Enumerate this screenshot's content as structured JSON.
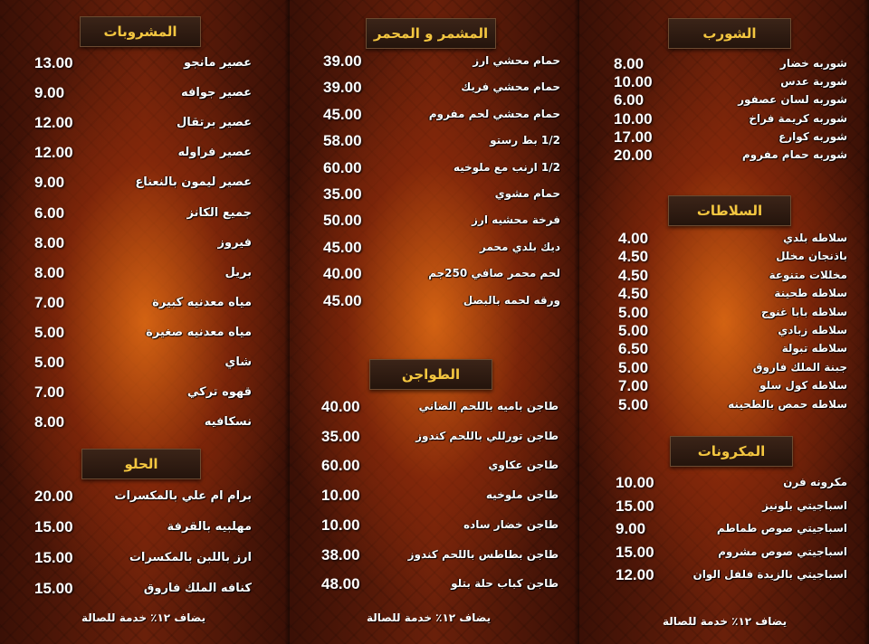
{
  "colors": {
    "header_text": "#f4c640",
    "header_bg": "#2e1a10",
    "item_text": "#ffffff",
    "background": "#8a2a0c"
  },
  "service_note": "يضاف ١٢٪ خدمة للصالة",
  "sections": [
    {
      "id": "drinks",
      "title": "المشروبات",
      "items": [
        {
          "name": "عصير مانجو",
          "price": "13.00"
        },
        {
          "name": "عصير جوافه",
          "price": "9.00"
        },
        {
          "name": "عصير برتقال",
          "price": "12.00"
        },
        {
          "name": "عصير فراوله",
          "price": "12.00"
        },
        {
          "name": "عصير ليمون بالنعناع",
          "price": "9.00"
        },
        {
          "name": "جميع الكانز",
          "price": "6.00"
        },
        {
          "name": "فيروز",
          "price": "8.00"
        },
        {
          "name": "بريل",
          "price": "8.00"
        },
        {
          "name": "مياه معدنيه كبيرة",
          "price": "7.00"
        },
        {
          "name": "مياه معدنيه صغيرة",
          "price": "5.00"
        },
        {
          "name": "شاي",
          "price": "5.00"
        },
        {
          "name": "قهوه تركي",
          "price": "7.00"
        },
        {
          "name": "نسكافيه",
          "price": "8.00"
        }
      ]
    },
    {
      "id": "desserts",
      "title": "الحلو",
      "items": [
        {
          "name": "برام ام علي بالمكسرات",
          "price": "20.00"
        },
        {
          "name": "مهلبيه بالقرفة",
          "price": "15.00"
        },
        {
          "name": "ارز باللبن بالمكسرات",
          "price": "15.00"
        },
        {
          "name": "كنافه الملك فاروق",
          "price": "15.00"
        }
      ]
    },
    {
      "id": "grills",
      "title": "المشمر و المحمر",
      "items": [
        {
          "name": "حمام محشي ارز",
          "price": "39.00"
        },
        {
          "name": "حمام محشي فريك",
          "price": "39.00"
        },
        {
          "name": "حمام محشي لحم مفروم",
          "price": "45.00"
        },
        {
          "name": "1/2 بط رستو",
          "price": "58.00"
        },
        {
          "name": "1/2 ارنب مع ملوخيه",
          "price": "60.00"
        },
        {
          "name": "حمام مشوي",
          "price": "35.00"
        },
        {
          "name": "فرخة محشيه ارز",
          "price": "50.00"
        },
        {
          "name": "ديك بلدي محمر",
          "price": "45.00"
        },
        {
          "name": "لحم محمر صافي 250جم",
          "price": "40.00"
        },
        {
          "name": "ورقه لحمه بالبصل",
          "price": "45.00"
        }
      ]
    },
    {
      "id": "tagines",
      "title": "الطواجن",
      "items": [
        {
          "name": "طاجن باميه باللحم الضاني",
          "price": "40.00"
        },
        {
          "name": "طاجن تورللي باللحم كندوز",
          "price": "35.00"
        },
        {
          "name": "طاجن عكاوي",
          "price": "60.00"
        },
        {
          "name": "طاجن ملوخيه",
          "price": "10.00"
        },
        {
          "name": "طاجن خضار ساده",
          "price": "10.00"
        },
        {
          "name": "طاجن بطاطس باللحم كندوز",
          "price": "38.00"
        },
        {
          "name": "طاجن كباب حلة بتلو",
          "price": "48.00"
        }
      ]
    },
    {
      "id": "soups",
      "title": "الشورب",
      "items": [
        {
          "name": "شوربه خضار",
          "price": "8.00"
        },
        {
          "name": "شوربة عدس",
          "price": "10.00"
        },
        {
          "name": "شوربه لسان عصفور",
          "price": "6.00"
        },
        {
          "name": "شوربه كريمة فراخ",
          "price": "10.00"
        },
        {
          "name": "شوربه كوارع",
          "price": "17.00"
        },
        {
          "name": "شوربه حمام مفروم",
          "price": "20.00"
        }
      ]
    },
    {
      "id": "salads",
      "title": "السلاطات",
      "items": [
        {
          "name": "سلاطه بلدي",
          "price": "4.00"
        },
        {
          "name": "باذنجان مخلل",
          "price": "4.50"
        },
        {
          "name": "مخللات متنوعة",
          "price": "4.50"
        },
        {
          "name": "سلاطه طحينة",
          "price": "4.50"
        },
        {
          "name": "سلاطه بابا غنوج",
          "price": "5.00"
        },
        {
          "name": "سلاطه زبادي",
          "price": "5.00"
        },
        {
          "name": "سلاطه تبولة",
          "price": "6.50"
        },
        {
          "name": "جبنة الملك فاروق",
          "price": "5.00"
        },
        {
          "name": "سلاطه كول سلو",
          "price": "7.00"
        },
        {
          "name": "سلاطه حمص بالطحينه",
          "price": "5.00"
        }
      ]
    },
    {
      "id": "pasta",
      "title": "المكرونات",
      "items": [
        {
          "name": "مكرونه فرن",
          "price": "10.00"
        },
        {
          "name": "اسباجيتي بلونيز",
          "price": "15.00"
        },
        {
          "name": "اسباجيتي صوص طماطم",
          "price": "9.00"
        },
        {
          "name": "اسباجيتي صوص مشروم",
          "price": "15.00"
        },
        {
          "name": "اسباجيتي بالزيدة فلفل الوان",
          "price": "12.00"
        }
      ]
    }
  ]
}
